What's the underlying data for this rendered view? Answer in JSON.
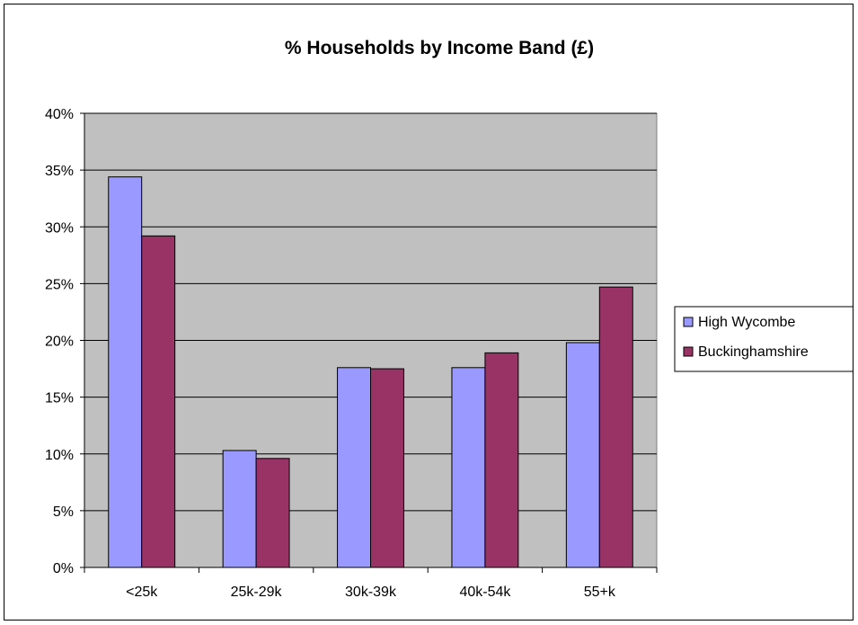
{
  "chart_data": {
    "type": "bar",
    "title": "% Households by Income Band (£)",
    "xlabel": "",
    "ylabel": "",
    "categories": [
      "<25k",
      "25k-29k",
      "30k-39k",
      "40k-54k",
      "55+k"
    ],
    "series": [
      {
        "name": "High Wycombe",
        "values": [
          34.4,
          10.3,
          17.6,
          17.6,
          19.8
        ],
        "color": "#9999ff"
      },
      {
        "name": "Buckinghamshire",
        "values": [
          29.2,
          9.6,
          17.5,
          18.9,
          24.7
        ],
        "color": "#993366"
      }
    ],
    "ylim": [
      0,
      40
    ],
    "y_ticks": [
      "0%",
      "5%",
      "10%",
      "15%",
      "20%",
      "25%",
      "30%",
      "35%",
      "40%"
    ],
    "y_tick_values": [
      0,
      5,
      10,
      15,
      20,
      25,
      30,
      35,
      40
    ],
    "grid": true,
    "plot_background": "#c0c0c0",
    "legend_position": "right"
  }
}
